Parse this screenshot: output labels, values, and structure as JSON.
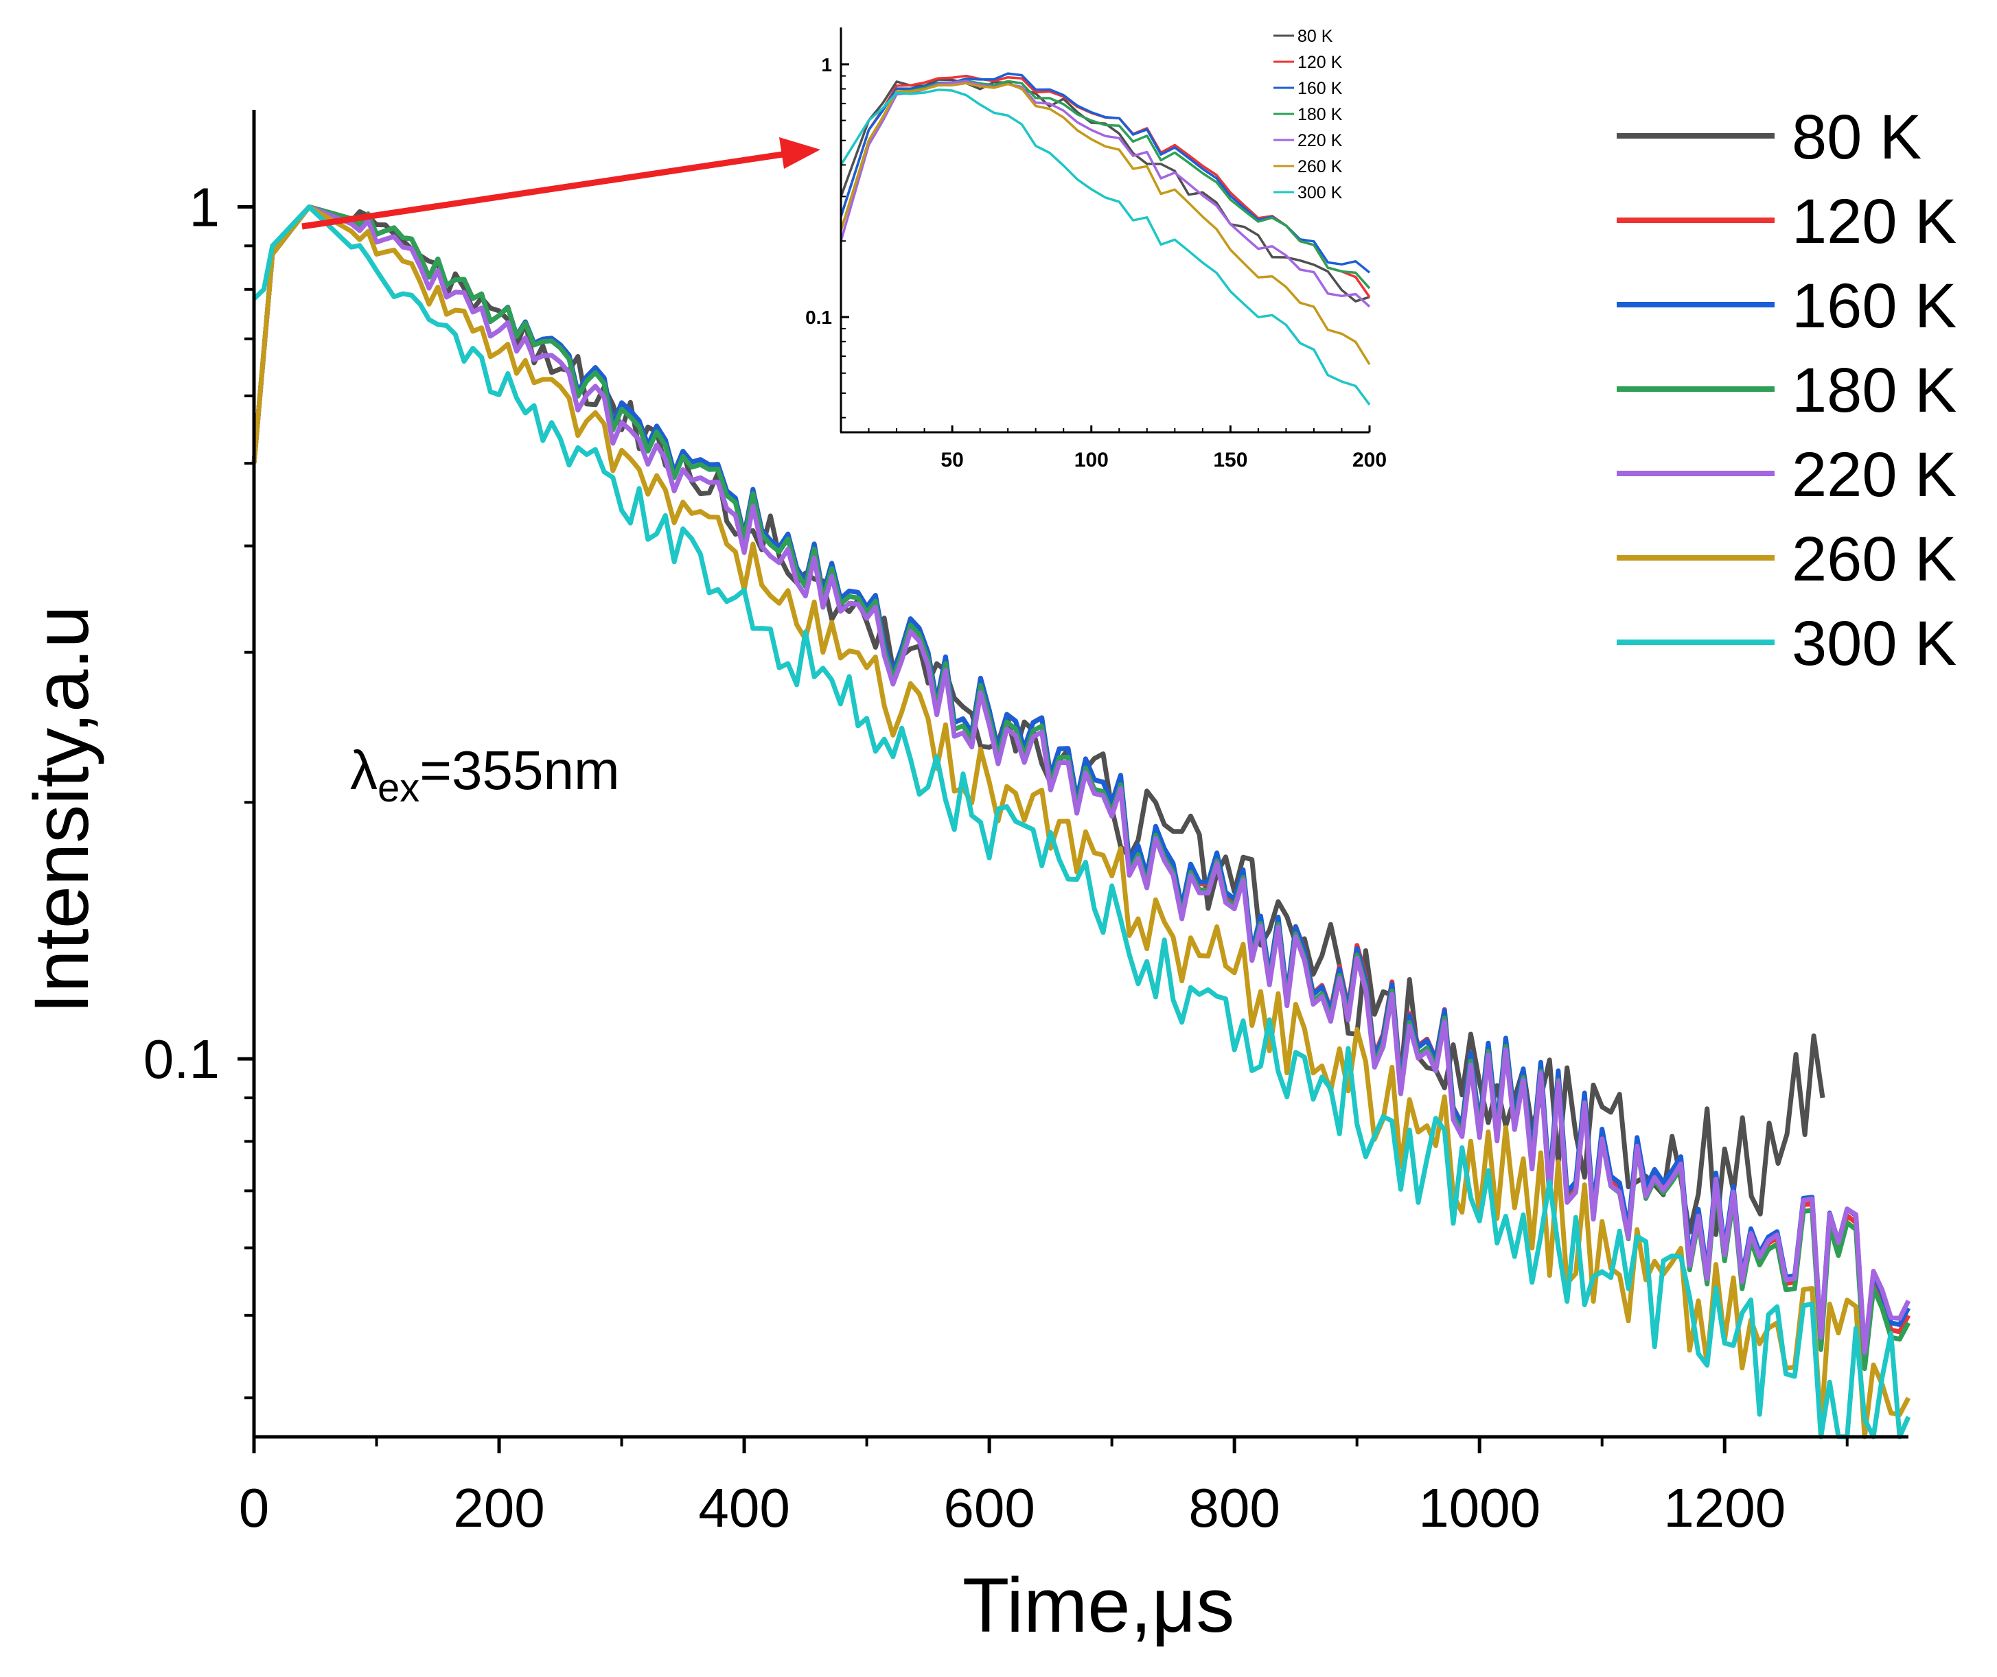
{
  "chart_data": [
    {
      "id": "main",
      "type": "line",
      "title": "",
      "xlabel": "Time,μs",
      "ylabel": "Intensity,a.u",
      "xlim": [
        0,
        1350
      ],
      "ylim": [
        0.036,
        1.3
      ],
      "yscale": "log",
      "x_ticks": [
        0,
        200,
        400,
        600,
        800,
        1000,
        1200
      ],
      "x_tick_labels": [
        "0",
        "200",
        "400",
        "600",
        "800",
        "1000",
        "1200"
      ],
      "y_ticks": [
        0.1,
        1
      ],
      "y_tick_labels": [
        "0.1",
        "1"
      ],
      "annotation": {
        "symbol": "λ",
        "subscript": "ex",
        "text": "=355nm"
      },
      "legend_position": "top-right",
      "series": [
        {
          "name": "80 K",
          "color": "#505050",
          "x": [
            0,
            15,
            45,
            100,
            200,
            300,
            400,
            500,
            600,
            700,
            800,
            900,
            1000,
            1100,
            1200,
            1280
          ],
          "values": [
            0.5,
            0.88,
            1.0,
            0.94,
            0.74,
            0.58,
            0.43,
            0.32,
            0.255,
            0.2,
            0.158,
            0.118,
            0.095,
            0.082,
            0.072,
            0.09
          ]
        },
        {
          "name": "120 K",
          "color": "#ee3333",
          "x": [
            0,
            15,
            45,
            100,
            200,
            300,
            400,
            500,
            600,
            700,
            800,
            900,
            1000,
            1100,
            1200,
            1300,
            1350
          ],
          "values": [
            0.5,
            0.88,
            1.0,
            0.95,
            0.75,
            0.58,
            0.44,
            0.33,
            0.255,
            0.195,
            0.148,
            0.118,
            0.094,
            0.076,
            0.063,
            0.054,
            0.05
          ]
        },
        {
          "name": "160 K",
          "color": "#1a5fd6",
          "x": [
            0,
            15,
            45,
            100,
            200,
            300,
            400,
            500,
            600,
            700,
            800,
            900,
            1000,
            1100,
            1200,
            1300,
            1350
          ],
          "values": [
            0.5,
            0.88,
            1.0,
            0.95,
            0.75,
            0.58,
            0.44,
            0.33,
            0.255,
            0.195,
            0.149,
            0.117,
            0.094,
            0.077,
            0.064,
            0.055,
            0.051
          ]
        },
        {
          "name": "180 K",
          "color": "#2e9f55",
          "x": [
            0,
            15,
            45,
            100,
            200,
            300,
            400,
            500,
            600,
            700,
            800,
            900,
            1000,
            1100,
            1200,
            1300,
            1350
          ],
          "values": [
            0.5,
            0.88,
            1.0,
            0.95,
            0.75,
            0.57,
            0.435,
            0.325,
            0.25,
            0.19,
            0.146,
            0.115,
            0.092,
            0.075,
            0.062,
            0.053,
            0.049
          ]
        },
        {
          "name": "220 K",
          "color": "#a366e0",
          "x": [
            0,
            15,
            45,
            100,
            200,
            300,
            400,
            500,
            600,
            700,
            800,
            900,
            1000,
            1100,
            1200,
            1300,
            1350
          ],
          "values": [
            0.5,
            0.88,
            1.0,
            0.93,
            0.72,
            0.55,
            0.42,
            0.32,
            0.245,
            0.188,
            0.145,
            0.114,
            0.091,
            0.075,
            0.063,
            0.055,
            0.052
          ]
        },
        {
          "name": "260 K",
          "color": "#c49a1a",
          "x": [
            0,
            15,
            45,
            100,
            200,
            300,
            400,
            500,
            600,
            700,
            800,
            900,
            1000,
            1100,
            1200,
            1300,
            1350
          ],
          "values": [
            0.5,
            0.88,
            1.0,
            0.9,
            0.68,
            0.51,
            0.38,
            0.28,
            0.21,
            0.16,
            0.122,
            0.094,
            0.074,
            0.06,
            0.05,
            0.043,
            0.04
          ]
        },
        {
          "name": "300 K",
          "color": "#1ec6c6",
          "x": [
            0,
            8,
            15,
            45,
            100,
            200,
            300,
            400,
            500,
            600,
            700,
            800,
            900,
            1000,
            1100,
            1200,
            1300,
            1350
          ],
          "values": [
            0.78,
            0.8,
            0.9,
            1.0,
            0.84,
            0.62,
            0.46,
            0.34,
            0.25,
            0.19,
            0.145,
            0.112,
            0.088,
            0.07,
            0.057,
            0.048,
            0.041,
            0.038
          ]
        }
      ]
    },
    {
      "id": "inset",
      "type": "line",
      "title": "",
      "xlabel": "",
      "ylabel": "",
      "xlim": [
        10,
        200
      ],
      "ylim": [
        0.035,
        1.4
      ],
      "yscale": "log",
      "x_ticks": [
        50,
        100,
        150,
        200
      ],
      "x_tick_labels": [
        "50",
        "100",
        "150",
        "200"
      ],
      "y_ticks": [
        0.1,
        1
      ],
      "y_tick_labels": [
        "0.1",
        "1"
      ],
      "legend_position": "top-right",
      "series": [
        {
          "name": "80 K",
          "color": "#505050",
          "x": [
            10,
            20,
            30,
            50,
            70,
            90,
            110,
            130,
            150,
            170,
            190,
            200
          ],
          "values": [
            0.3,
            0.6,
            0.82,
            0.86,
            0.8,
            0.7,
            0.52,
            0.36,
            0.24,
            0.17,
            0.13,
            0.12
          ]
        },
        {
          "name": "120 K",
          "color": "#ee3333",
          "x": [
            10,
            20,
            30,
            50,
            70,
            90,
            110,
            130,
            150,
            170,
            190,
            200
          ],
          "values": [
            0.25,
            0.55,
            0.8,
            0.9,
            0.85,
            0.75,
            0.6,
            0.45,
            0.32,
            0.21,
            0.15,
            0.12
          ]
        },
        {
          "name": "160 K",
          "color": "#1a5fd6",
          "x": [
            10,
            20,
            30,
            50,
            70,
            90,
            110,
            130,
            150,
            170,
            190,
            200
          ],
          "values": [
            0.25,
            0.55,
            0.78,
            0.86,
            0.88,
            0.76,
            0.6,
            0.44,
            0.31,
            0.21,
            0.16,
            0.15
          ]
        },
        {
          "name": "180 K",
          "color": "#2e9f55",
          "x": [
            10,
            20,
            30,
            50,
            70,
            90,
            110,
            130,
            150,
            170,
            190,
            200
          ],
          "values": [
            0.22,
            0.5,
            0.76,
            0.86,
            0.82,
            0.7,
            0.56,
            0.42,
            0.3,
            0.21,
            0.15,
            0.13
          ]
        },
        {
          "name": "220 K",
          "color": "#a366e0",
          "x": [
            10,
            20,
            30,
            50,
            70,
            90,
            110,
            130,
            150,
            170,
            190,
            200
          ],
          "values": [
            0.2,
            0.48,
            0.74,
            0.86,
            0.8,
            0.66,
            0.5,
            0.35,
            0.24,
            0.16,
            0.12,
            0.11
          ]
        },
        {
          "name": "260 K",
          "color": "#c49a1a",
          "x": [
            10,
            20,
            30,
            50,
            70,
            90,
            110,
            130,
            150,
            170,
            190,
            200
          ],
          "values": [
            0.22,
            0.5,
            0.76,
            0.84,
            0.8,
            0.62,
            0.45,
            0.3,
            0.19,
            0.12,
            0.085,
            0.065
          ]
        },
        {
          "name": "300 K",
          "color": "#1ec6c6",
          "x": [
            10,
            20,
            30,
            50,
            70,
            90,
            110,
            130,
            150,
            170,
            190,
            200
          ],
          "values": [
            0.4,
            0.6,
            0.75,
            0.8,
            0.6,
            0.4,
            0.28,
            0.19,
            0.13,
            0.085,
            0.055,
            0.045
          ]
        }
      ]
    }
  ]
}
